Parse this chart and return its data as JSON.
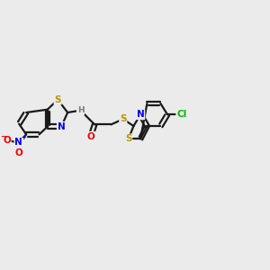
{
  "bg_color": "#ebebeb",
  "bond_color": "#1a1a1a",
  "bond_width": 1.6,
  "atom_colors": {
    "S": "#b8960c",
    "N": "#0000ee",
    "O": "#ee0000",
    "Cl": "#00bb00",
    "C": "#1a1a1a",
    "H": "#7a7a7a"
  },
  "figsize": [
    3.0,
    3.0
  ],
  "dpi": 100
}
